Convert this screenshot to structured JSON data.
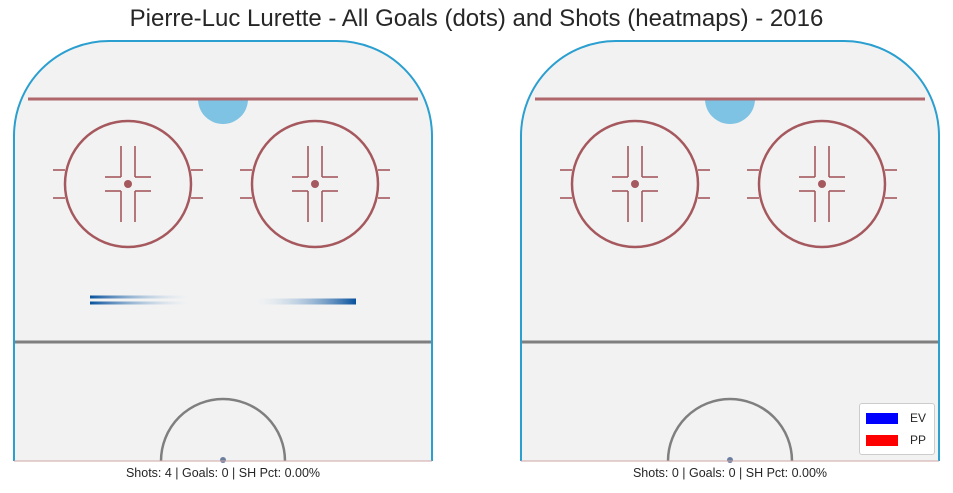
{
  "chart_data": {
    "type": "heatmap",
    "title": "Pierre-Luc Lurette - All Goals (dots) and Shots (heatmaps) - 2016",
    "panels": [
      {
        "name": "left",
        "caption": "Shots: 4 | Goals: 0 | SH Pct: 0.00%",
        "shots": 4,
        "goals": 0,
        "sh_pct": "0.00%",
        "goal_dots": [],
        "heat_segments": [
          {
            "series": "EV",
            "x": -31,
            "y": 50
          },
          {
            "series": "EV",
            "x": -31,
            "y": 48
          },
          {
            "series": "EV",
            "x": 31,
            "y": 49
          },
          {
            "series": "EV",
            "x": 31,
            "y": 48
          }
        ]
      },
      {
        "name": "right",
        "caption": "Shots: 0 | Goals: 0 | SH Pct: 0.00%",
        "shots": 0,
        "goals": 0,
        "sh_pct": "0.00%",
        "goal_dots": [],
        "heat_segments": []
      }
    ],
    "legend": {
      "placement": "bottom-right",
      "entries": [
        {
          "label": "EV",
          "color": "#0000ff"
        },
        {
          "label": "PP",
          "color": "#ff0000"
        }
      ]
    },
    "colors": {
      "ice": "#f2f2f2",
      "boards": "#2a9fd0",
      "goal_line": "#b0676c",
      "faceoff": "#a5595e",
      "crease": "#7ec3e3",
      "blue_line": "#7f7f7f",
      "heat_dark": "#08519c",
      "heat_light": "#c6dbef"
    }
  }
}
